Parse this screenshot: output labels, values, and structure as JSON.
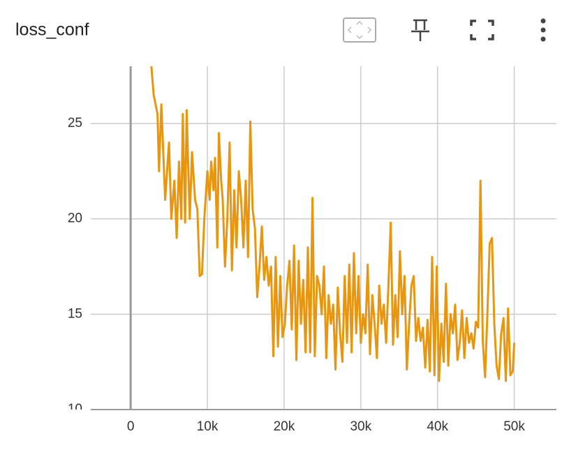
{
  "chart_data": {
    "type": "line",
    "title": "loss_conf",
    "x": [
      2500,
      3000,
      3500,
      3700,
      4000,
      4500,
      5000,
      5300,
      5700,
      6000,
      6300,
      6600,
      6800,
      7100,
      7300,
      7700,
      8000,
      8400,
      8700,
      9000,
      9300,
      9600,
      10000,
      10300,
      10500,
      10800,
      11000,
      11300,
      11500,
      11800,
      12000,
      12300,
      12600,
      12900,
      13200,
      13500,
      13800,
      14100,
      14400,
      14700,
      15000,
      15300,
      15600,
      15900,
      16200,
      16500,
      16800,
      17100,
      17400,
      17700,
      18000,
      18300,
      18600,
      18900,
      19200,
      19500,
      19800,
      20100,
      20400,
      20700,
      21000,
      21300,
      21600,
      21900,
      22200,
      22500,
      22800,
      23100,
      23400,
      23700,
      24000,
      24300,
      24600,
      24900,
      25200,
      25500,
      25800,
      26100,
      26400,
      26700,
      27000,
      27300,
      27600,
      27900,
      28200,
      28500,
      28800,
      29100,
      29400,
      29700,
      30000,
      30300,
      30600,
      30900,
      31200,
      31500,
      31800,
      32100,
      32400,
      32700,
      33000,
      33300,
      33600,
      33900,
      34200,
      34500,
      34800,
      35100,
      35400,
      35700,
      36000,
      36300,
      36600,
      36900,
      37200,
      37500,
      37800,
      38100,
      38400,
      38700,
      39000,
      39300,
      39600,
      39900,
      40200,
      40500,
      40800,
      41100,
      41400,
      41700,
      42000,
      42300,
      42600,
      42900,
      43200,
      43500,
      43800,
      44100,
      44400,
      44700,
      45000,
      45300,
      45600,
      45900,
      46200,
      46500,
      46800,
      47100,
      47400,
      47700,
      48000,
      48300,
      48600,
      48900,
      49200,
      49500,
      49800,
      50000
    ],
    "series": [
      {
        "name": "loss_conf",
        "color": "#e8960f",
        "values": [
          29,
          26.5,
          25.5,
          22.5,
          26,
          21,
          24,
          20,
          22,
          19,
          23,
          20,
          25.5,
          19.8,
          25.7,
          20,
          23.5,
          21,
          20.5,
          17,
          17.1,
          20,
          22.5,
          21,
          23,
          21.5,
          23.2,
          18.5,
          24.5,
          22,
          21,
          17.5,
          20,
          24,
          17.3,
          21.5,
          18.5,
          22.5,
          21,
          18.5,
          22,
          18,
          25.1,
          20.5,
          19.5,
          15.9,
          17.5,
          19.6,
          16.8,
          18,
          16.5,
          17.5,
          12.8,
          18,
          13.3,
          17,
          13.8,
          14.5,
          16.5,
          17.8,
          14.2,
          18.6,
          12.6,
          17.8,
          14.5,
          16.8,
          13,
          18.5,
          13,
          21.1,
          12.8,
          17,
          16.5,
          15,
          17.5,
          12.7,
          16,
          14.5,
          15.5,
          12.1,
          16.4,
          14,
          12.5,
          17,
          13.5,
          17.6,
          13,
          18.2,
          14,
          17,
          13.5,
          15,
          14,
          17.6,
          12.9,
          16,
          14.5,
          12.7,
          16.5,
          14.5,
          15.5,
          13.5,
          16.5,
          19.8,
          13.4,
          16,
          13.8,
          18.3,
          15,
          17,
          12.1,
          14.5,
          16.5,
          17,
          13.6,
          14.8,
          13.6,
          14.3,
          12.2,
          14.7,
          12,
          18,
          11.8,
          17.5,
          11.5,
          14.5,
          12.5,
          16.6,
          12.3,
          15,
          14,
          15.5,
          12.6,
          13.5,
          15.2,
          12.7,
          14.8,
          13.5,
          14,
          13.2,
          14.6,
          14.3,
          22,
          13.6,
          11.7,
          15,
          18.7,
          19,
          14.5,
          12.3,
          11.6,
          14,
          14.8,
          11.5,
          15.3,
          11.8,
          12,
          13.5
        ]
      }
    ],
    "xlim": [
      -5200,
      55500
    ],
    "xticks": [
      0,
      {
        "value": 10000,
        "label": "10k"
      },
      {
        "value": 20000,
        "label": "20k"
      },
      {
        "value": 30000,
        "label": "30k"
      },
      {
        "value": 40000,
        "label": "40k"
      },
      {
        "value": 50000,
        "label": "50k"
      }
    ],
    "ylim": [
      10,
      28
    ],
    "yticks": [
      10,
      15,
      20,
      25
    ],
    "grid": true
  }
}
